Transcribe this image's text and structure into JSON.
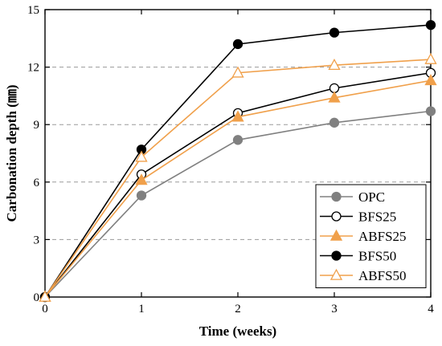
{
  "chart_data": {
    "type": "line",
    "xlabel": "Time (weeks)",
    "ylabel": "Carbonation depth (㎜)",
    "xlim": [
      0,
      4
    ],
    "ylim": [
      0,
      15
    ],
    "x_ticks": [
      0,
      1,
      2,
      3,
      4
    ],
    "y_ticks": [
      0,
      3,
      6,
      9,
      12,
      15
    ],
    "x_tick_labels": [
      "0",
      "1",
      "2",
      "3",
      "4"
    ],
    "y_tick_labels": [
      "0",
      "3",
      "6",
      "9",
      "12",
      "15"
    ],
    "grid": "horizontal-dashed",
    "legend_position": "bottom-right",
    "x": [
      0,
      1,
      2,
      3,
      4
    ],
    "series": [
      {
        "name": "OPC",
        "values": [
          0,
          5.3,
          8.2,
          9.1,
          9.7
        ],
        "color": "#808080",
        "marker": "circle",
        "filled": true
      },
      {
        "name": "BFS25",
        "values": [
          0,
          6.4,
          9.6,
          10.9,
          11.7
        ],
        "color": "#000000",
        "marker": "circle",
        "filled": false
      },
      {
        "name": "ABFS25",
        "values": [
          0,
          6.1,
          9.4,
          10.4,
          11.3
        ],
        "color": "#f0a04b",
        "marker": "triangle",
        "filled": true
      },
      {
        "name": "BFS50",
        "values": [
          0,
          7.7,
          13.2,
          13.8,
          14.2
        ],
        "color": "#000000",
        "marker": "circle",
        "filled": true
      },
      {
        "name": "ABFS50",
        "values": [
          0,
          7.3,
          11.7,
          12.1,
          12.4
        ],
        "color": "#f0a04b",
        "marker": "triangle",
        "filled": false
      }
    ]
  }
}
